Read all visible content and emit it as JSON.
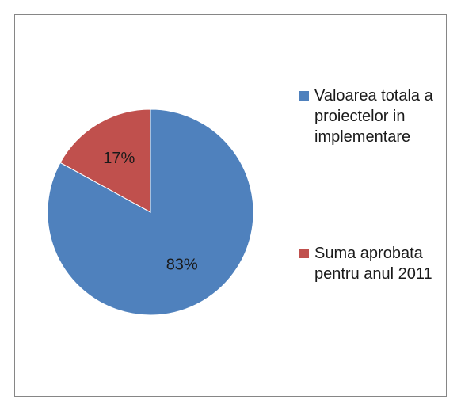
{
  "chart_data": {
    "type": "pie",
    "categories": [
      "Valoarea totala a proiectelor in implementare",
      "Suma aprobata pentru anul 2011"
    ],
    "values": [
      83,
      17
    ],
    "value_labels": [
      "83%",
      "17%"
    ],
    "colors": [
      "#4f81bd",
      "#c0504d"
    ],
    "legend": "right"
  }
}
